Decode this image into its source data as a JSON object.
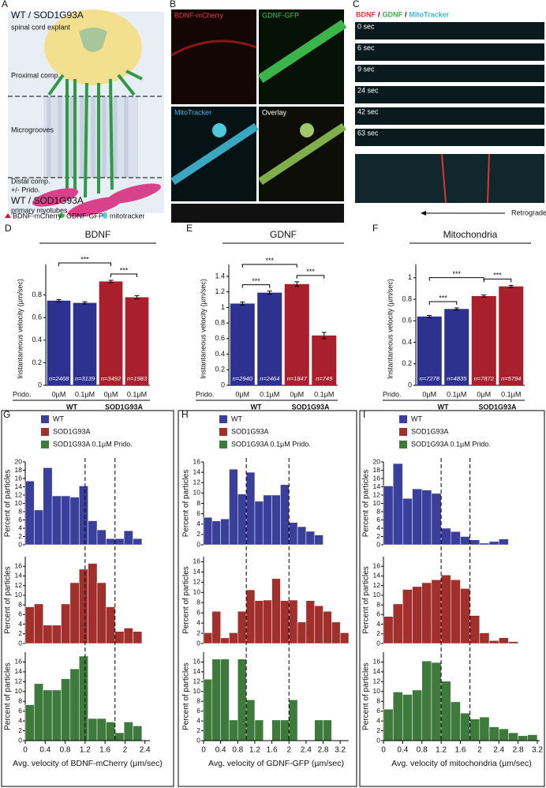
{
  "panel_labels": [
    "A",
    "B",
    "C",
    "D",
    "E",
    "F",
    "G",
    "H",
    "I"
  ],
  "diagram": {
    "title": "WT / SOD1G93A",
    "subtitle": "spinal cord explant",
    "proximal": "Proximal comp.",
    "microgrooves": "Microgrooves",
    "distal": "Distal comp.",
    "distal_note": "+/- Prido.",
    "myotube_title": "WT / SOD1G93A",
    "myotube_subtitle": "primary myotubes",
    "legend": [
      "BDNF-mCherry",
      "GDNF-GFP",
      "mitotracker"
    ]
  },
  "microscopy": {
    "tiles": [
      "BDNF-mCherry",
      "GDNF-GFP",
      "MitoTracker",
      "Overlay"
    ]
  },
  "kymograph": {
    "header": [
      "BDNF",
      "/",
      "GDNF",
      "/",
      "MitoTracker"
    ],
    "times": [
      "0 sec",
      "6 sec",
      "9 sec",
      "24 sec",
      "42 sec",
      "63 sec"
    ],
    "direction": "Retrograde"
  },
  "chart_data": [
    {
      "type": "bar",
      "title": "BDNF",
      "ylabel": "Instantaneous velocity (µm/sec)",
      "x_title": "Prido.",
      "categories": [
        "0µM",
        "0.1µM",
        "0µM",
        "0.1µM"
      ],
      "groups": [
        "WT",
        "SOD1G93A"
      ],
      "values": [
        0.75,
        0.73,
        0.92,
        0.78
      ],
      "errors": [
        0.01,
        0.01,
        0.01,
        0.015
      ],
      "colors": [
        "#2d3190",
        "#2d3190",
        "#a91f2c",
        "#a91f2c"
      ],
      "n_labels": [
        "n=2468",
        "n=3139",
        "n=3492",
        "n=1983"
      ],
      "annotations": [
        "***",
        "***"
      ],
      "ylim": [
        0,
        1
      ],
      "yticks": [
        0,
        0.2,
        0.4,
        0.6,
        0.8
      ]
    },
    {
      "type": "bar",
      "title": "GDNF",
      "ylabel": "Instantaneous velocity (µm/sec)",
      "x_title": "Prido.",
      "categories": [
        "0µM",
        "0.1µM",
        "0µM",
        "0.1µM"
      ],
      "groups": [
        "WT",
        "SOD1G93A"
      ],
      "values": [
        1.05,
        1.19,
        1.3,
        0.64
      ],
      "errors": [
        0.02,
        0.02,
        0.03,
        0.04
      ],
      "colors": [
        "#2d3190",
        "#2d3190",
        "#a91f2c",
        "#a91f2c"
      ],
      "n_labels": [
        "n=2940",
        "n=2464",
        "n=1847",
        "n=749"
      ],
      "annotations": [
        "***",
        "***",
        "***"
      ],
      "ylim": [
        0,
        1.45
      ],
      "yticks": [
        0,
        0.2,
        0.4,
        0.6,
        0.8,
        1,
        1.2,
        1.4
      ]
    },
    {
      "type": "bar",
      "title": "Mitochondria",
      "ylabel": "Instantaneous velocity (µm/sec)",
      "x_title": "Prido.",
      "categories": [
        "0µM",
        "0.1µM",
        "0µM",
        "0.1µM"
      ],
      "groups": [
        "WT",
        "SOD1G93A"
      ],
      "values": [
        0.64,
        0.71,
        0.83,
        0.92
      ],
      "errors": [
        0.01,
        0.01,
        0.01,
        0.01
      ],
      "colors": [
        "#2d3190",
        "#2d3190",
        "#a91f2c",
        "#a91f2c"
      ],
      "n_labels": [
        "n=7278",
        "n=4835",
        "n=7872",
        "n=5794"
      ],
      "annotations": [
        "***",
        "***",
        "***"
      ],
      "ylim": [
        0,
        1.05
      ],
      "yticks": [
        0,
        0.2,
        0.4,
        0.6,
        0.8,
        1
      ]
    },
    {
      "type": "histogram",
      "ylabel": "Percent of particles",
      "xlabel": "Avg. velocity of BDNF-mCherry (µm/sec)",
      "bins": [
        0,
        0.18,
        0.36,
        0.54,
        0.72,
        0.9,
        1.08,
        1.26,
        1.44,
        1.62,
        1.8,
        1.98,
        2.16,
        2.34
      ],
      "xlim": [
        0,
        2.5
      ],
      "xticks": [
        0,
        0.4,
        0.8,
        1.2,
        1.6,
        2,
        2.4
      ],
      "vlines": [
        1.2,
        1.8
      ],
      "series": [
        {
          "name": "WT",
          "color": "#3a3f9c",
          "values": [
            15.4,
            8.4,
            18.6,
            11.8,
            11.8,
            11.5,
            14.2,
            5.8,
            3.6,
            1.5,
            1.5,
            3.4,
            1.5
          ],
          "ylim": [
            0,
            20
          ],
          "yticks": [
            0,
            2,
            4,
            6,
            8,
            10,
            12,
            14,
            16,
            18,
            20
          ]
        },
        {
          "name": "SOD1G93A",
          "color": "#a1302c",
          "values": [
            7.6,
            8.2,
            3.8,
            3.8,
            8.2,
            12.6,
            15.4,
            16.6,
            12.6,
            7.6,
            2.5,
            3.2,
            2.5
          ],
          "ylim": [
            0,
            18
          ],
          "yticks": [
            0,
            2,
            4,
            6,
            8,
            10,
            12,
            14,
            16
          ]
        },
        {
          "name": "SOD1G93A 0.1µM Prido.",
          "color": "#3e7a3c",
          "values": [
            7.3,
            11.6,
            10.3,
            10.3,
            12.6,
            14.6,
            17.2,
            4.5,
            4.5,
            3.8,
            1.6,
            3.8,
            3
          ],
          "ylim": [
            0,
            18
          ],
          "yticks": [
            0,
            2,
            4,
            6,
            8,
            10,
            12,
            14,
            16
          ]
        }
      ]
    },
    {
      "type": "histogram",
      "ylabel": "Percent of particles",
      "xlabel": "Avg. velocity of GDNF-GFP (µm/sec)",
      "bins": [
        0,
        0.2,
        0.4,
        0.6,
        0.8,
        1,
        1.2,
        1.4,
        1.6,
        1.8,
        2,
        2.2,
        2.4,
        2.6,
        2.8,
        3,
        3.2,
        3.4
      ],
      "xlim": [
        0,
        3.4
      ],
      "xticks": [
        0,
        0.4,
        0.8,
        1.2,
        1.6,
        2,
        2.4,
        2.8,
        3.2
      ],
      "vlines": [
        1,
        2
      ],
      "series": [
        {
          "name": "WT",
          "color": "#3a3f9c",
          "values": [
            5.3,
            4.6,
            5,
            14.6,
            9.8,
            14,
            8.4,
            9.6,
            9.6,
            11.6,
            4.3,
            3.5,
            2.6,
            1.9,
            0,
            0,
            0
          ],
          "ylim": [
            0,
            16
          ],
          "yticks": [
            0,
            2,
            4,
            6,
            8,
            10,
            12,
            14,
            16
          ]
        },
        {
          "name": "SOD1G93A",
          "color": "#a1302c",
          "values": [
            2.1,
            6.3,
            1.1,
            2.1,
            6.3,
            10.5,
            8.4,
            8.5,
            12.7,
            8.4,
            8.5,
            4.2,
            8.4,
            7.4,
            6.3,
            4.2,
            2.1
          ],
          "ylim": [
            0,
            17
          ],
          "yticks": [
            0,
            2,
            4,
            6,
            8,
            10,
            12,
            14,
            16
          ]
        },
        {
          "name": "SOD1G93A 0.1µM Prido.",
          "color": "#3e7a3c",
          "values": [
            12.5,
            16.6,
            16.6,
            4.2,
            16.6,
            8.3,
            4.2,
            0,
            4.2,
            4.2,
            8.3,
            0,
            0,
            4.2,
            4.2,
            0,
            0
          ],
          "ylim": [
            0,
            18
          ],
          "yticks": [
            0,
            2,
            4,
            6,
            8,
            10,
            12,
            14,
            16
          ]
        }
      ]
    },
    {
      "type": "histogram",
      "ylabel": "Percent of particles",
      "xlabel": "Avg. velocity of mitochondria (µm/sec)",
      "bins": [
        0,
        0.2,
        0.4,
        0.6,
        0.8,
        1,
        1.2,
        1.4,
        1.6,
        1.8,
        2,
        2.2,
        2.4,
        2.6,
        2.8,
        3,
        3.2
      ],
      "xlim": [
        0,
        3.25
      ],
      "xticks": [
        0,
        0.4,
        0.8,
        1.2,
        1.6,
        2,
        2.4,
        2.8,
        3.2
      ],
      "vlines": [
        1.2,
        1.8
      ],
      "series": [
        {
          "name": "WT",
          "color": "#3a3f9c",
          "values": [
            14.2,
            19.6,
            11.2,
            13.5,
            13.2,
            12.4,
            4,
            3.2,
            2,
            1.2,
            0.4,
            0.8,
            1.4,
            0,
            0,
            0
          ],
          "ylim": [
            0,
            20
          ],
          "yticks": [
            0,
            2,
            4,
            6,
            8,
            10,
            12,
            14,
            16,
            18,
            20
          ]
        },
        {
          "name": "SOD1G93A",
          "color": "#a1302c",
          "values": [
            5.6,
            8.2,
            11.2,
            11.8,
            12.6,
            13.2,
            14.2,
            13.2,
            11.4,
            5.8,
            2.2,
            0.6,
            1.2,
            0.4,
            0,
            0
          ],
          "ylim": [
            0,
            18
          ],
          "yticks": [
            0,
            2,
            4,
            6,
            8,
            10,
            12,
            14,
            16
          ]
        },
        {
          "name": "SOD1G93A 0.1µM Prido.",
          "color": "#3e7a3c",
          "values": [
            6.4,
            9.9,
            9.4,
            10.3,
            16.2,
            15.9,
            12.1,
            7.9,
            5.6,
            4.4,
            4.8,
            2.8,
            2.4,
            1.6,
            1,
            1.2
          ],
          "ylim": [
            0,
            18
          ],
          "yticks": [
            0,
            2,
            4,
            6,
            8,
            10,
            12,
            14,
            16
          ]
        }
      ]
    }
  ]
}
